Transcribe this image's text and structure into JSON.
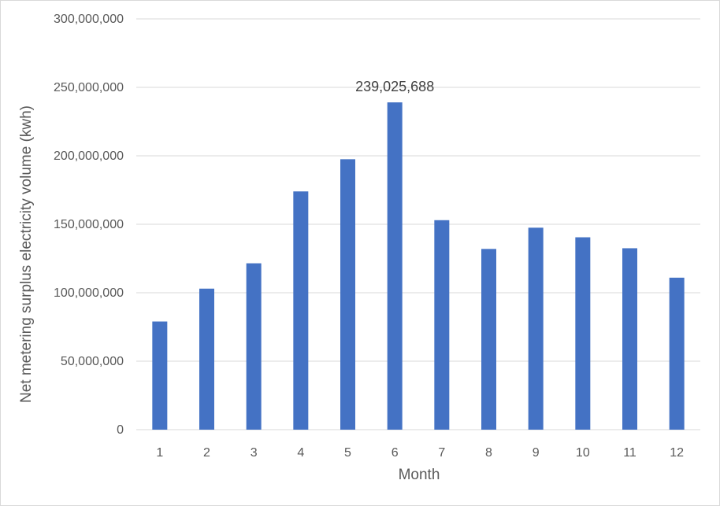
{
  "chart_data": {
    "type": "bar",
    "title": "",
    "xlabel": "Month",
    "ylabel": "Net metering surplus electricity volume (kwh)",
    "categories": [
      "1",
      "2",
      "3",
      "4",
      "5",
      "6",
      "7",
      "8",
      "9",
      "10",
      "11",
      "12"
    ],
    "values": [
      79000000,
      103000000,
      121500000,
      174000000,
      197500000,
      239025688,
      153000000,
      132000000,
      147500000,
      140500000,
      132500000,
      111000000
    ],
    "ylim": [
      0,
      300000000
    ],
    "yticks": [
      0,
      50000000,
      100000000,
      150000000,
      200000000,
      250000000,
      300000000
    ],
    "ytick_labels": [
      "0",
      "50,000,000",
      "100,000,000",
      "150,000,000",
      "200,000,000",
      "250,000,000",
      "300,000,000"
    ],
    "data_labels": [
      {
        "index": 5,
        "text": "239,025,688"
      }
    ],
    "grid": true,
    "legend": "none",
    "bar_color": "#4472C4",
    "grid_color": "#d9d9d9"
  }
}
